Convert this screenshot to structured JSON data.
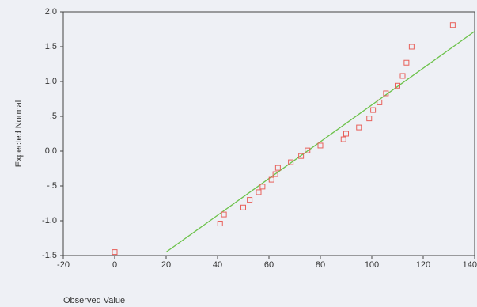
{
  "chart_data": {
    "type": "scatter",
    "x_label": "Observed Value",
    "y_label": "Expected Normal",
    "xlim": [
      -20,
      140
    ],
    "xticks": [
      -20,
      0,
      20,
      40,
      60,
      80,
      100,
      120,
      140
    ],
    "ylim": [
      -1.5,
      2.0
    ],
    "yticks": [
      -1.5,
      {
        "value": -1,
        "label": "-1.0"
      },
      {
        "value": -0.5,
        "label": "-.5"
      },
      {
        "value": 0,
        "label": "0.0"
      },
      {
        "value": 0.5,
        "label": ".5"
      },
      {
        "value": 1,
        "label": "1.0"
      },
      1.5,
      {
        "value": 2,
        "label": "2.0"
      }
    ],
    "series": [
      {
        "color": "#e8605a",
        "x": [
          0,
          41,
          42.5,
          50,
          52.5,
          56,
          57.5,
          61,
          62.5,
          63.5,
          68.5,
          72.5,
          75,
          80,
          89,
          90,
          95,
          99,
          100.5,
          103,
          105.5,
          110,
          112,
          113.5,
          115.5,
          131.5
        ],
        "values": [
          -1.45,
          -1.04,
          -0.91,
          -0.81,
          -0.7,
          -0.59,
          -0.51,
          -0.41,
          -0.33,
          -0.24,
          -0.16,
          -0.07,
          0.01,
          0.08,
          0.17,
          0.25,
          0.34,
          0.47,
          0.59,
          0.7,
          0.83,
          0.94,
          1.08,
          1.27,
          1.5,
          1.81
        ]
      }
    ],
    "reference_line": {
      "color": "#6cc24a",
      "x": [
        20,
        140
      ],
      "values": [
        -1.45,
        1.72
      ]
    }
  }
}
